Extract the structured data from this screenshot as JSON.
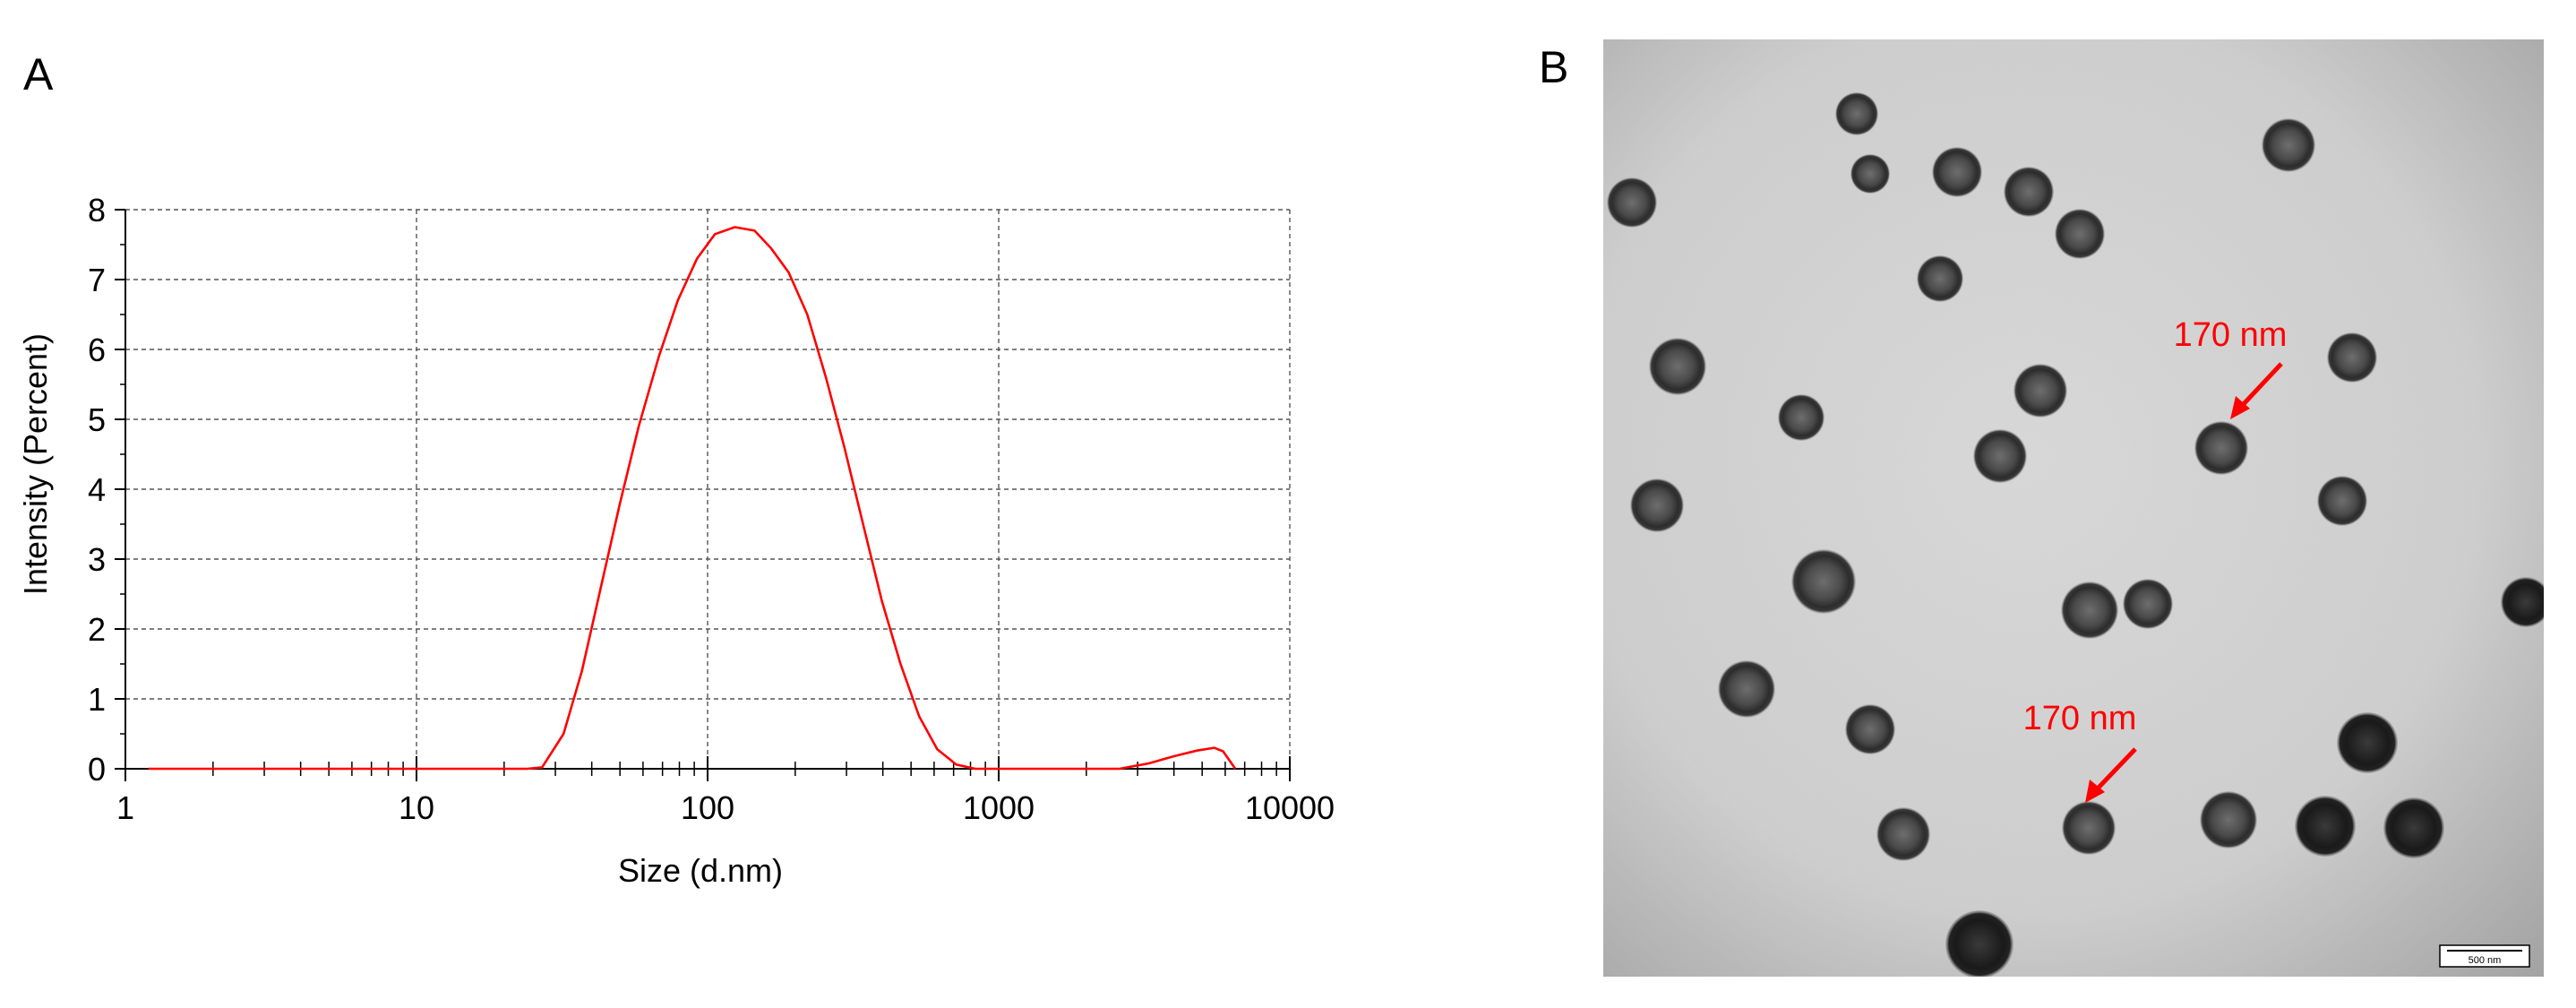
{
  "panels": {
    "a_label": "A",
    "b_label": "B"
  },
  "chart_data": {
    "type": "line",
    "title": "",
    "xlabel": "Size (d.nm)",
    "ylabel": "Intensity (Percent)",
    "x_scale": "log",
    "xlim": [
      1,
      10000
    ],
    "ylim": [
      0,
      8
    ],
    "x_ticks": [
      "1",
      "10",
      "100",
      "1000",
      "10000"
    ],
    "y_ticks": [
      "0",
      "1",
      "2",
      "3",
      "4",
      "5",
      "6",
      "7",
      "8"
    ],
    "grid": true,
    "line_color": "#ff0000",
    "series": [
      {
        "x": [
          1.2,
          20,
          24,
          27,
          32,
          37,
          43,
          50,
          58,
          68,
          79,
          92,
          106,
          124,
          145,
          165,
          190,
          220,
          255,
          295,
          342,
          397,
          460,
          533,
          615,
          715,
          830,
          960,
          2600,
          3300,
          4000,
          4800,
          5500,
          5900,
          6500
        ],
        "y": [
          0,
          0,
          0,
          0.02,
          0.5,
          1.4,
          2.6,
          3.8,
          4.9,
          5.9,
          6.7,
          7.3,
          7.65,
          7.75,
          7.7,
          7.45,
          7.1,
          6.5,
          5.6,
          4.6,
          3.5,
          2.4,
          1.5,
          0.75,
          0.28,
          0.06,
          0,
          0,
          0,
          0.08,
          0.18,
          0.26,
          0.3,
          0.25,
          0
        ]
      }
    ]
  },
  "micrograph": {
    "annotations": [
      {
        "text": "170 nm"
      },
      {
        "text": "170 nm"
      }
    ],
    "scale_bar_label": "500 nm",
    "annotation_color": "#ff0000"
  }
}
